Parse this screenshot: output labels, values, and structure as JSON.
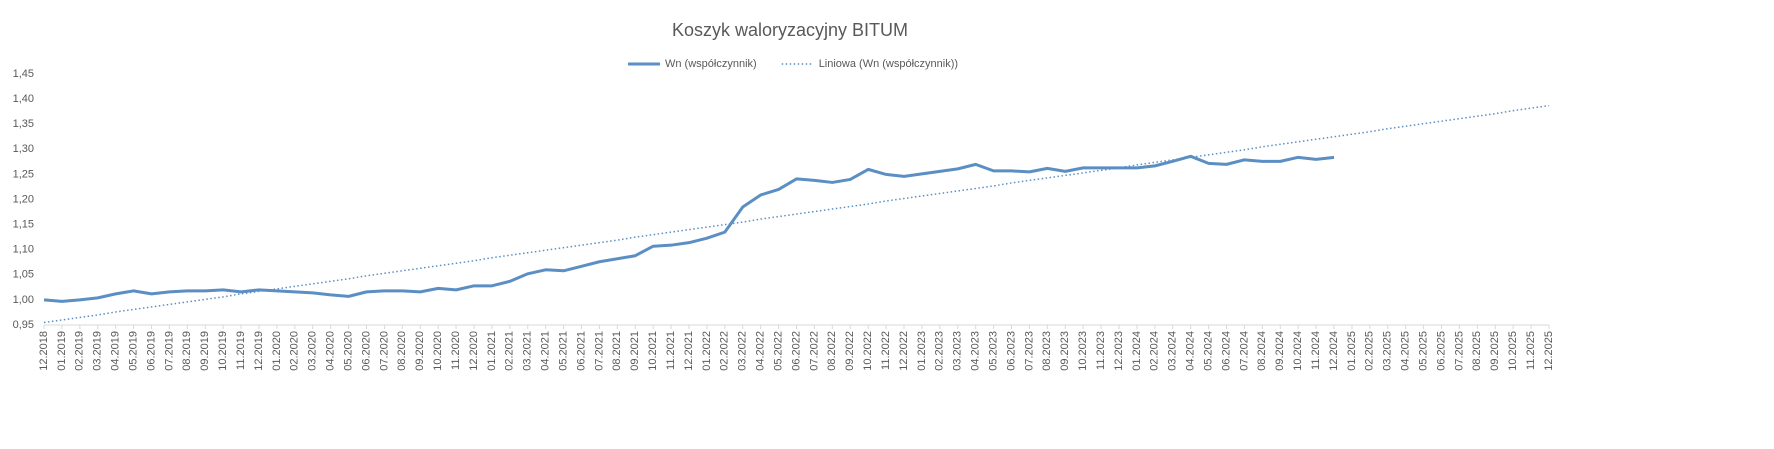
{
  "chart_data": {
    "type": "line",
    "title": "Koszyk waloryzacyjny BITUM",
    "categories": [
      "12.2018",
      "01.2019",
      "02.2019",
      "03.2019",
      "04.2019",
      "05.2019",
      "06.2019",
      "07.2019",
      "08.2019",
      "09.2019",
      "10.2019",
      "11.2019",
      "12.2019",
      "01.2020",
      "02.2020",
      "03.2020",
      "04.2020",
      "05.2020",
      "06.2020",
      "07.2020",
      "08.2020",
      "09.2020",
      "10.2020",
      "11.2020",
      "12.2020",
      "01.2021",
      "02.2021",
      "03.2021",
      "04.2021",
      "05.2021",
      "06.2021",
      "07.2021",
      "08.2021",
      "09.2021",
      "10.2021",
      "11.2021",
      "12.2021",
      "01.2022",
      "02.2022",
      "03.2022",
      "04.2022",
      "05.2022",
      "06.2022",
      "07.2022",
      "08.2022",
      "09.2022",
      "10.2022",
      "11.2022",
      "12.2022",
      "01.2023",
      "02.2023",
      "03.2023",
      "04.2023",
      "05.2023",
      "06.2023",
      "07.2023",
      "08.2023",
      "09.2023",
      "10.2023",
      "11.2023",
      "12.2023",
      "01.2024",
      "02.2024",
      "03.2024",
      "04.2024",
      "05.2024",
      "06.2024",
      "07.2024",
      "08.2024",
      "09.2024",
      "10.2024",
      "11.2024",
      "12.2024",
      "01.2025",
      "02.2025",
      "03.2025",
      "04.2025",
      "05.2025",
      "06.2025",
      "07.2025",
      "08.2025",
      "09.2025",
      "10.2025",
      "11.2025",
      "12.2025"
    ],
    "series": [
      {
        "name": "Wn (współczynnik)",
        "color": "#5b8fc4",
        "style": "solid",
        "values": [
          1.0,
          0.997,
          1.0,
          1.004,
          1.012,
          1.018,
          1.012,
          1.016,
          1.018,
          1.018,
          1.02,
          1.016,
          1.02,
          1.018,
          1.016,
          1.014,
          1.01,
          1.007,
          1.016,
          1.018,
          1.018,
          1.016,
          1.023,
          1.02,
          1.028,
          1.028,
          1.037,
          1.052,
          1.06,
          1.058,
          1.067,
          1.076,
          1.082,
          1.088,
          1.107,
          1.109,
          1.114,
          1.123,
          1.135,
          1.185,
          1.209,
          1.22,
          1.241,
          1.238,
          1.234,
          1.24,
          1.26,
          1.25,
          1.246,
          1.251,
          1.256,
          1.261,
          1.27,
          1.257,
          1.257,
          1.255,
          1.262,
          1.256,
          1.263,
          1.263,
          1.263,
          1.263,
          1.267,
          1.276,
          1.286,
          1.272,
          1.27,
          1.279,
          1.276,
          1.276,
          1.284,
          1.28,
          1.284,
          null,
          null,
          null,
          null,
          null,
          null,
          null,
          null,
          null,
          null,
          null,
          null
        ]
      },
      {
        "name": "Liniowa (Wn (współczynnik))",
        "color": "#5b8fc4",
        "style": "dotted",
        "values": [
          0.955,
          0.96,
          0.965,
          0.97,
          0.976,
          0.981,
          0.986,
          0.991,
          0.996,
          1.001,
          1.006,
          1.012,
          1.017,
          1.022,
          1.027,
          1.032,
          1.037,
          1.042,
          1.048,
          1.053,
          1.058,
          1.063,
          1.068,
          1.073,
          1.078,
          1.084,
          1.089,
          1.094,
          1.099,
          1.104,
          1.109,
          1.114,
          1.119,
          1.125,
          1.13,
          1.135,
          1.14,
          1.145,
          1.15,
          1.155,
          1.161,
          1.166,
          1.171,
          1.176,
          1.181,
          1.186,
          1.191,
          1.197,
          1.202,
          1.207,
          1.212,
          1.217,
          1.222,
          1.227,
          1.233,
          1.238,
          1.243,
          1.248,
          1.253,
          1.258,
          1.263,
          1.269,
          1.274,
          1.279,
          1.284,
          1.289,
          1.294,
          1.299,
          1.305,
          1.31,
          1.315,
          1.32,
          1.325,
          1.33,
          1.335,
          1.341,
          1.346,
          1.351,
          1.356,
          1.361,
          1.366,
          1.371,
          1.377,
          1.382,
          1.387
        ]
      }
    ],
    "ylim": [
      0.95,
      1.45
    ],
    "yticks": [
      {
        "value": 0.95,
        "label": "0,95"
      },
      {
        "value": 1.0,
        "label": "1,00"
      },
      {
        "value": 1.05,
        "label": "1,05"
      },
      {
        "value": 1.1,
        "label": "1,10"
      },
      {
        "value": 1.15,
        "label": "1,15"
      },
      {
        "value": 1.2,
        "label": "1,20"
      },
      {
        "value": 1.25,
        "label": "1,25"
      },
      {
        "value": 1.3,
        "label": "1,30"
      },
      {
        "value": 1.35,
        "label": "1,35"
      },
      {
        "value": 1.4,
        "label": "1,40"
      },
      {
        "value": 1.45,
        "label": "1,45"
      }
    ],
    "legend": "top",
    "grid": false
  }
}
